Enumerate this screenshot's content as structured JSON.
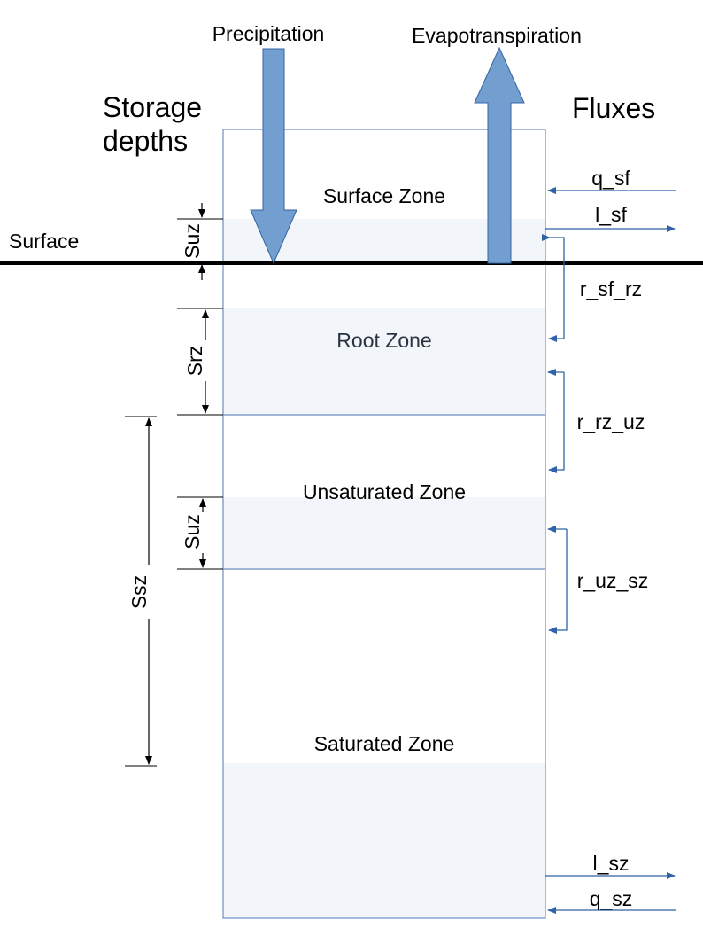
{
  "headings": {
    "storage": "Storage depths",
    "fluxes": "Fluxes"
  },
  "vertical_flows": {
    "precipitation": "Precipitation",
    "evapotranspiration": "Evapotranspiration"
  },
  "surface_label": "Surface",
  "zones": {
    "surface": "Surface Zone",
    "root": "Root Zone",
    "unsaturated": "Unsaturated Zone",
    "saturated": "Saturated Zone"
  },
  "storage_depths": {
    "surface": "Suz",
    "root": "Srz",
    "unsaturated": "Suz",
    "saturated": "Ssz"
  },
  "fluxes": {
    "q_sf": "q_sf",
    "l_sf": "l_sf",
    "r_sf_rz": "r_sf_rz",
    "r_rz_uz": "r_rz_uz",
    "r_uz_sz": "r_uz_sz",
    "l_sz": "l_sz",
    "q_sz": "q_sz"
  },
  "colors": {
    "column_border": "#6b8fc0",
    "storage_fill": "#f2f6fb",
    "big_arrow_fill": "#729fcf",
    "big_arrow_stroke": "#3465a4",
    "flux_arrow": "#2f62a8"
  }
}
